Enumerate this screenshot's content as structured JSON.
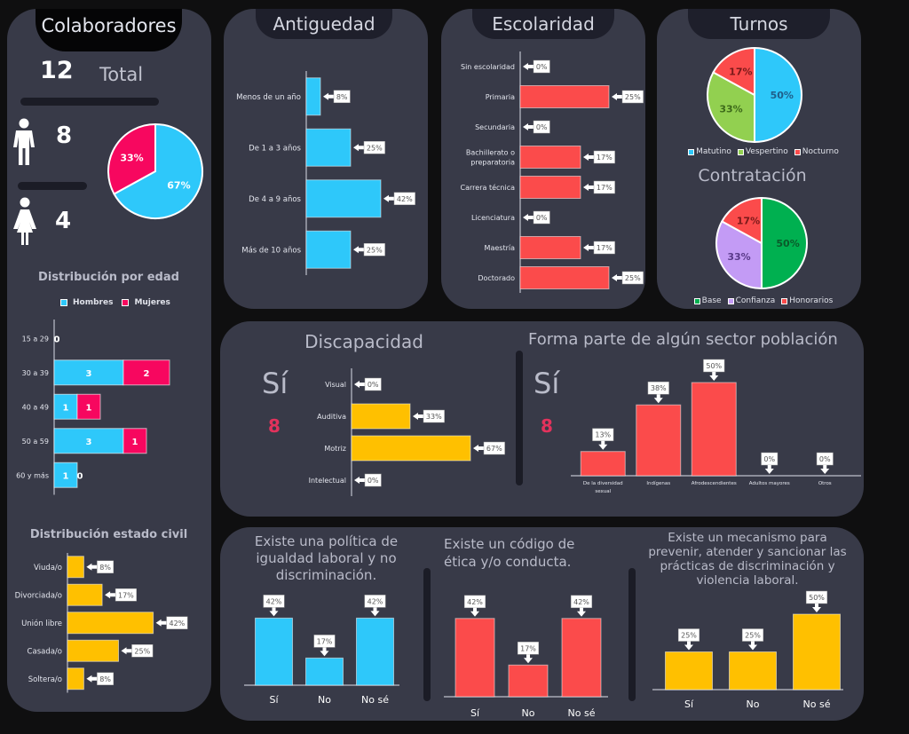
{
  "colaboradores": {
    "title": "Colaboradores",
    "total_value": "12",
    "total_label": "Total",
    "men_value": "8",
    "women_value": "4",
    "gender_pie": [
      {
        "label": "Hombres",
        "value": 67,
        "text": "67%",
        "color": "#2ec8fa"
      },
      {
        "label": "Mujeres",
        "value": 33,
        "text": "33%",
        "color": "#f7075f"
      }
    ]
  },
  "colors": {
    "blue": "#2ec8fa",
    "pink": "#f7075f",
    "red": "#fb4b4b",
    "yellow": "#ffc000",
    "green": "#92d050",
    "dark_green": "#00b050",
    "lavender": "#c39bf5",
    "card": "#383a48",
    "background": "#0f0f10"
  },
  "chart_data": [
    {
      "id": "edad",
      "type": "bar",
      "orientation": "horizontal",
      "stacked": true,
      "title": "Distribución por edad",
      "legend": [
        "Hombres",
        "Mujeres"
      ],
      "legend_position": "top",
      "categories": [
        "15 a 29",
        "30 a 39",
        "40 a 49",
        "50 a 59",
        "60 y más"
      ],
      "series": [
        {
          "name": "Hombres",
          "values": [
            0,
            3,
            1,
            3,
            1
          ],
          "color": "#2ec8fa"
        },
        {
          "name": "Mujeres",
          "values": [
            0,
            2,
            1,
            1,
            0
          ],
          "color": "#f7075f"
        }
      ]
    },
    {
      "id": "estado_civil",
      "type": "bar",
      "orientation": "horizontal",
      "title": "Distribución estado civil",
      "categories": [
        "Viuda/o",
        "Divorciada/o",
        "Unión libre",
        "Casada/o",
        "Soltera/o"
      ],
      "values": [
        8,
        17,
        42,
        25,
        8
      ],
      "labels": [
        "8%",
        "17%",
        "42%",
        "25%",
        "8%"
      ],
      "color": "#ffc000"
    },
    {
      "id": "antiguedad",
      "type": "bar",
      "orientation": "horizontal",
      "title": "Antiguedad",
      "categories": [
        "Menos de un año",
        "De 1 a 3 años",
        "De 4 a 9 años",
        "Más de 10 años"
      ],
      "values": [
        8,
        25,
        42,
        25
      ],
      "labels": [
        "8%",
        "25%",
        "42%",
        "25%"
      ],
      "color": "#2ec8fa"
    },
    {
      "id": "escolaridad",
      "type": "bar",
      "orientation": "horizontal",
      "title": "Escolaridad",
      "categories": [
        "Sin escolaridad",
        "Primaria",
        "Secundaria",
        "Bachillerato o preparatoria",
        "Carrera técnica",
        "Licenciatura",
        "Maestría",
        "Doctorado"
      ],
      "values": [
        0,
        25,
        0,
        17,
        17,
        0,
        17,
        25
      ],
      "labels": [
        "0%",
        "25%",
        "0%",
        "17%",
        "17%",
        "0%",
        "17%",
        "25%"
      ],
      "color": "#fb4b4b"
    },
    {
      "id": "turnos",
      "type": "pie",
      "title": "Turnos",
      "categories": [
        "Matutino",
        "Vespertino",
        "Nocturno"
      ],
      "values": [
        50,
        33,
        17
      ],
      "labels": [
        "50%",
        "33%",
        "17%"
      ],
      "colors": [
        "#2ec8fa",
        "#92d050",
        "#fb4b4b"
      ],
      "legend_position": "bottom"
    },
    {
      "id": "contratacion",
      "type": "pie",
      "title": "Contratación",
      "categories": [
        "Base",
        "Confianza",
        "Honorarios"
      ],
      "values": [
        50,
        33,
        17
      ],
      "labels": [
        "50%",
        "33%",
        "17%"
      ],
      "colors": [
        "#00b050",
        "#c39bf5",
        "#fb4b4b"
      ],
      "legend_position": "bottom"
    },
    {
      "id": "discapacidad",
      "type": "bar",
      "orientation": "horizontal",
      "title": "Discapacidad",
      "kpi_label": "Sí",
      "kpi_value": "8",
      "categories": [
        "Visual",
        "Auditiva",
        "Motriz",
        "Intelectual"
      ],
      "values": [
        0,
        33,
        67,
        0
      ],
      "labels": [
        "0%",
        "33%",
        "67%",
        "0%"
      ],
      "color": "#ffc000"
    },
    {
      "id": "sector",
      "type": "bar",
      "orientation": "vertical",
      "title": "Forma parte de algún sector población",
      "kpi_label": "Sí",
      "kpi_value": "8",
      "categories": [
        "De la diversidad sexual",
        "Indígenas",
        "Afrodescendientes",
        "Adultos mayores",
        "Otros"
      ],
      "values": [
        13,
        38,
        50,
        0,
        0
      ],
      "labels": [
        "13%",
        "38%",
        "50%",
        "0%",
        "0%"
      ],
      "color": "#fb4b4b"
    },
    {
      "id": "politica",
      "type": "bar",
      "orientation": "vertical",
      "title": "Existe una política de igualdad laboral y no discriminación.",
      "categories": [
        "Sí",
        "No",
        "No sé"
      ],
      "values": [
        42,
        17,
        42
      ],
      "labels": [
        "42%",
        "17%",
        "42%"
      ],
      "color": "#2ec8fa"
    },
    {
      "id": "codigo",
      "type": "bar",
      "orientation": "vertical",
      "title": "Existe un código de ética y/o conducta.",
      "categories": [
        "Sí",
        "No",
        "No sé"
      ],
      "values": [
        42,
        17,
        42
      ],
      "labels": [
        "42%",
        "17%",
        "42%"
      ],
      "color": "#fb4b4b"
    },
    {
      "id": "mecanismo",
      "type": "bar",
      "orientation": "vertical",
      "title": "Existe un mecanismo para prevenir, atender y sancionar las prácticas de discriminación y violencia laboral.",
      "categories": [
        "Sí",
        "No",
        "No sé"
      ],
      "values": [
        25,
        25,
        50
      ],
      "labels": [
        "25%",
        "25%",
        "50%"
      ],
      "color": "#ffc000"
    }
  ]
}
